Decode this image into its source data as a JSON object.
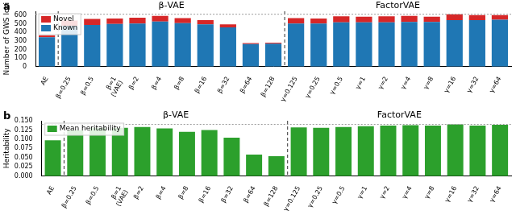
{
  "chart_data": [
    {
      "type": "bar",
      "title": "a",
      "y_label": "Number of GWS loci",
      "stacked": true,
      "grid": false,
      "legend": "upper left",
      "categories": [
        "AE",
        "β=0.25",
        "β=0.5",
        "β=1\n(VAE)",
        "β=2",
        "β=4",
        "β=8",
        "β=16",
        "β=32",
        "β=64",
        "β=128",
        "γ=0.125",
        "γ=0.25",
        "γ=0.5",
        "γ=1",
        "γ=2",
        "γ=4",
        "γ=8",
        "γ=16",
        "γ=32",
        "γ=64"
      ],
      "series": [
        {
          "name": "Known",
          "color": "#1f77b4",
          "values": [
            345,
            480,
            490,
            500,
            505,
            530,
            510,
            495,
            460,
            265,
            270,
            505,
            505,
            520,
            520,
            520,
            525,
            525,
            545,
            545,
            550
          ]
        },
        {
          "name": "Novel",
          "color": "#d62728",
          "values": [
            20,
            60,
            70,
            65,
            70,
            65,
            60,
            50,
            35,
            10,
            10,
            65,
            60,
            70,
            65,
            70,
            70,
            60,
            70,
            60,
            55
          ]
        }
      ],
      "ylim": [
        0,
        650
      ],
      "yticks": [
        0,
        100,
        200,
        300,
        400,
        500,
        600
      ],
      "reference_line": 615,
      "groups": [
        {
          "label": "β-VAE",
          "from": "β=0.25",
          "to": "β=128"
        },
        {
          "label": "FactorVAE",
          "from": "γ=0.125",
          "to": "γ=64"
        }
      ]
    },
    {
      "type": "bar",
      "title": "b",
      "y_label": "Heritability",
      "grid": false,
      "legend": "upper left",
      "categories": [
        "AE",
        "β=0.25",
        "β=0.5",
        "β=1\n(VAE)",
        "β=2",
        "β=4",
        "β=8",
        "β=16",
        "β=32",
        "β=64",
        "β=128",
        "γ=0.125",
        "γ=0.25",
        "γ=0.5",
        "γ=1",
        "γ=2",
        "γ=4",
        "γ=8",
        "γ=16",
        "γ=32",
        "γ=64"
      ],
      "series": [
        {
          "name": "Mean heritability",
          "color": "#2ca02c",
          "values": [
            0.097,
            0.125,
            0.131,
            0.131,
            0.133,
            0.129,
            0.12,
            0.125,
            0.104,
            0.058,
            0.054,
            0.132,
            0.131,
            0.133,
            0.135,
            0.137,
            0.138,
            0.137,
            0.14,
            0.137,
            0.139
          ]
        }
      ],
      "ylim": [
        0,
        0.15
      ],
      "yticks": [
        {
          "value": 0,
          "label": "0.000"
        },
        {
          "value": 0.025,
          "label": "0.025"
        },
        {
          "value": 0.05,
          "label": "0.050"
        },
        {
          "value": 0.075,
          "label": "0.075"
        },
        {
          "value": 0.1,
          "label": "0.100"
        },
        {
          "value": 0.125,
          "label": "0.125"
        },
        {
          "value": 0.15,
          "label": "0.150"
        }
      ],
      "reference_line": 0.14,
      "groups": [
        {
          "label": "β-VAE",
          "from": "β=0.25",
          "to": "β=128"
        },
        {
          "label": "FactorVAE",
          "from": "γ=0.125",
          "to": "γ=64"
        }
      ]
    }
  ]
}
